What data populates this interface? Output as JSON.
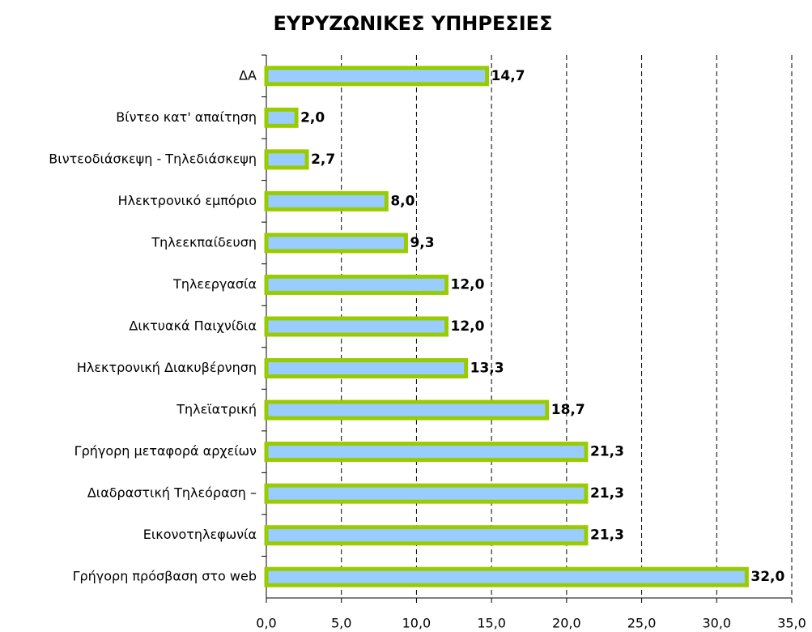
{
  "chart_data": {
    "type": "bar",
    "orientation": "horizontal",
    "title": "ΕΥΡΥΖΩΝΙΚΕΣ ΥΠΗΡΕΣΙΕΣ",
    "categories": [
      "ΔΑ",
      "Βίντεο κατ' απαίτηση",
      "Βιντεοδιάσκεψη - Τηλεδιάσκεψη",
      "Ηλεκτρονικό εμπόριο",
      "Τηλεεκπαίδευση",
      "Τηλεεργασία",
      "Δικτυακά Παιχνίδια",
      "Ηλεκτρονική Διακυβέρνηση",
      "Τηλεϊατρική",
      "Γρήγορη μεταφορά αρχείων",
      "Διαδραστική Τηλεόραση –",
      "Εικονοτηλεφωνία",
      "Γρήγορη πρόσβαση στο web"
    ],
    "values": [
      14.7,
      2.0,
      2.7,
      8.0,
      9.3,
      12.0,
      12.0,
      13.3,
      18.7,
      21.3,
      21.3,
      21.3,
      32.0
    ],
    "value_labels": [
      "14,7",
      "2,0",
      "2,7",
      "8,0",
      "9,3",
      "12,0",
      "12,0",
      "13,3",
      "18,7",
      "21,3",
      "21,3",
      "21,3",
      "32,0"
    ],
    "color": "#99ccff",
    "edge_color": "#99cc00",
    "xlim": [
      0,
      35
    ],
    "xticks": [
      {
        "value": 0,
        "label": "0,0"
      },
      {
        "value": 5,
        "label": "5,0"
      },
      {
        "value": 10,
        "label": "10,0"
      },
      {
        "value": 15,
        "label": "15,0"
      },
      {
        "value": 20,
        "label": "20,0"
      },
      {
        "value": 25,
        "label": "25,0"
      },
      {
        "value": 30,
        "label": "30,0"
      },
      {
        "value": 35,
        "label": "35,0"
      }
    ],
    "grid": true
  }
}
